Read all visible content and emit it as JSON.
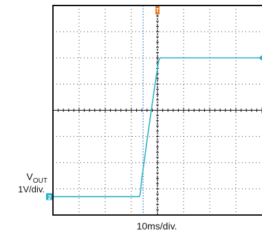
{
  "chart_data": {
    "type": "line",
    "title": "",
    "xlabel": "10ms/div.",
    "ylabel": "",
    "grid": true,
    "divisions": {
      "x": 8,
      "y": 8
    },
    "series": [
      {
        "name": "VOUT",
        "channel_marker": "2",
        "scale_base": "V",
        "scale_sub": "OUT",
        "scale_value": "1V/div.",
        "x": [
          0.0,
          3.3,
          3.34,
          3.4,
          3.5,
          3.6,
          3.7,
          3.8,
          3.9,
          4.0,
          4.05,
          4.1,
          4.2,
          4.5,
          5.0,
          6.0,
          7.0,
          8.0
        ],
        "values": [
          -3.3,
          -3.3,
          -3.2,
          -2.6,
          -1.9,
          -1.15,
          -0.45,
          0.25,
          0.95,
          1.6,
          1.9,
          2.0,
          2.0,
          2.0,
          2.0,
          2.0,
          2.0,
          2.0
        ]
      }
    ],
    "cursors": [
      {
        "name": "cursor-1",
        "x": 3.45
      },
      {
        "name": "trigger-line",
        "x": 4.0
      }
    ],
    "trigger_marker": {
      "x": 4.0,
      "label": "T"
    },
    "level_marker": {
      "y": 2.0
    },
    "colors": {
      "trace": "#2ab0c5",
      "grid": "#333333",
      "frame": "#111111",
      "cursor": "#2a7fc5",
      "trigger_line": "#111111",
      "trigger_marker": "#e07a22"
    }
  }
}
